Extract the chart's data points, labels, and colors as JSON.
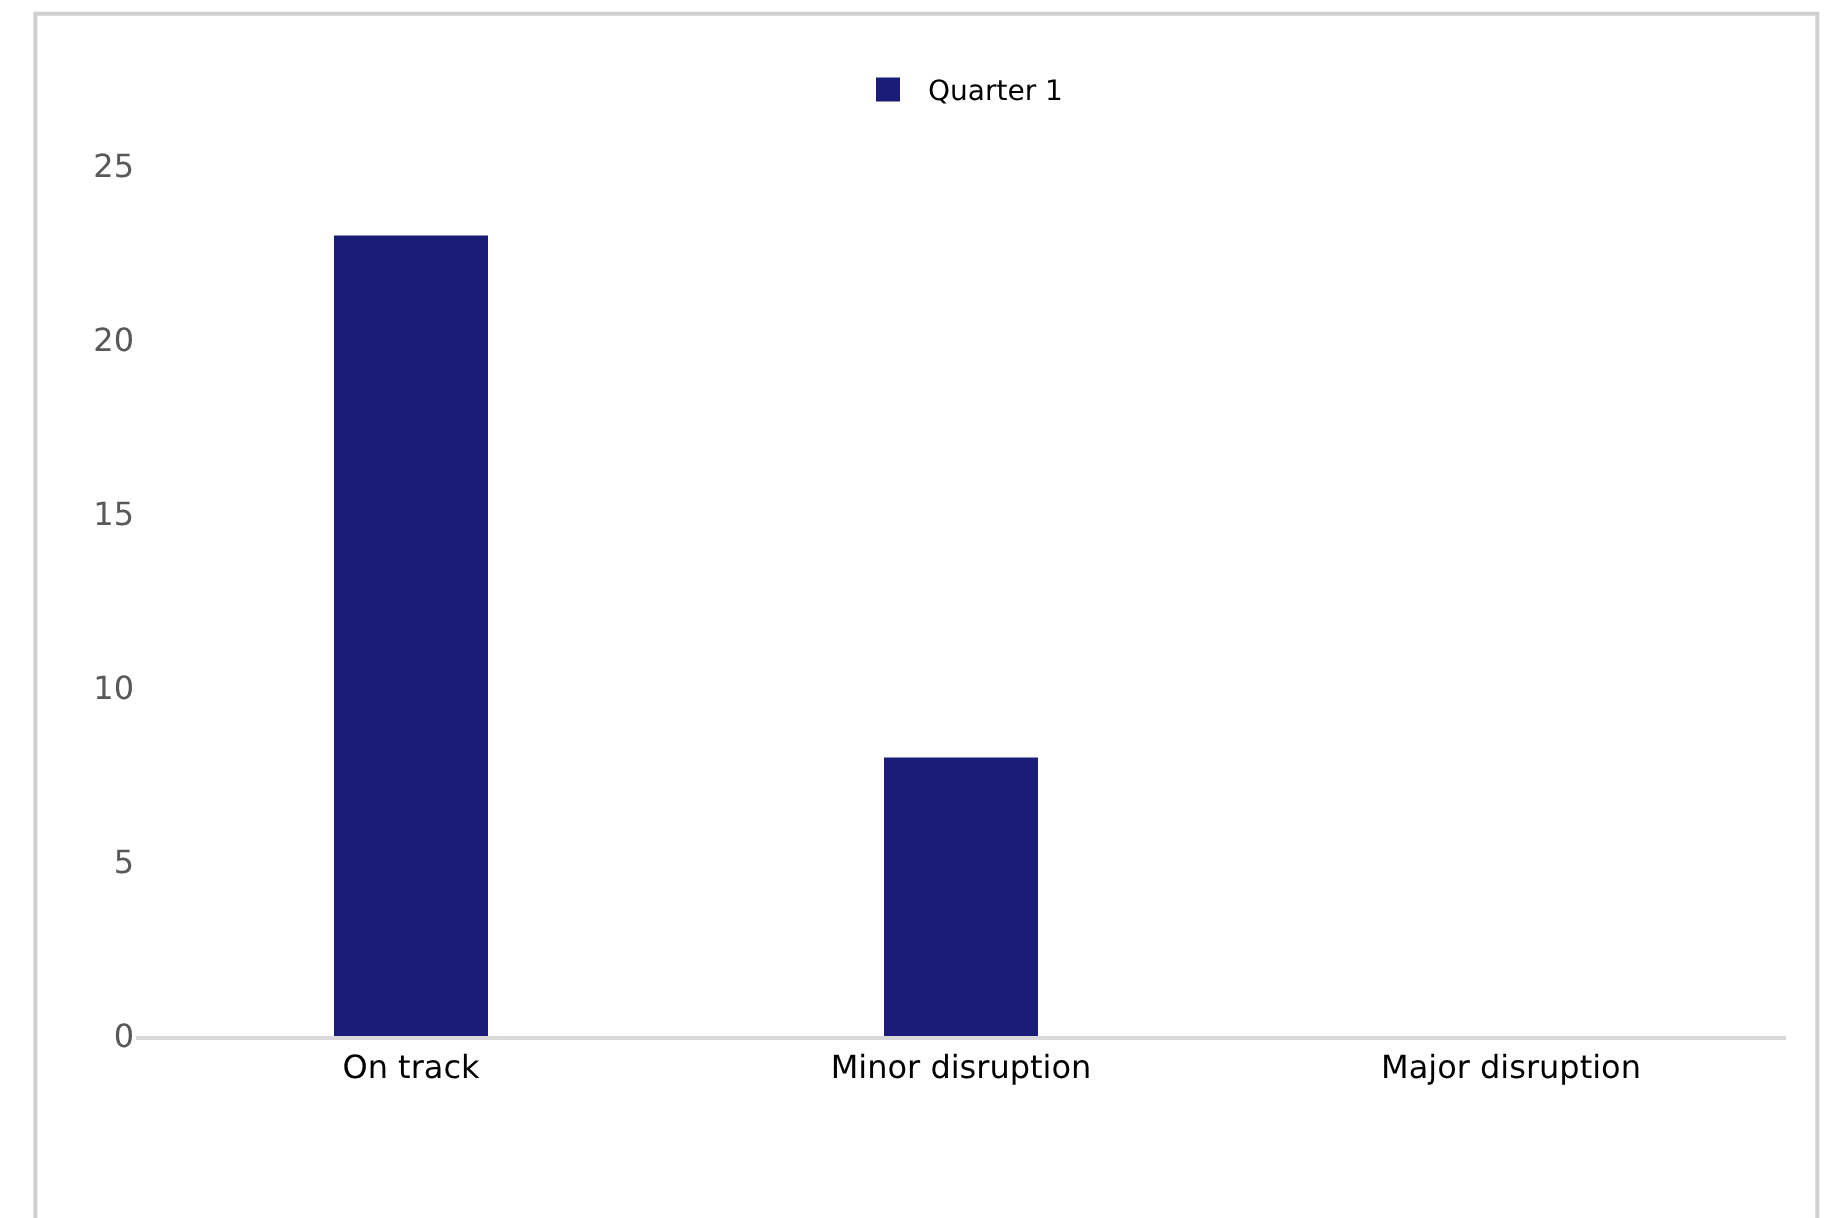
{
  "chart_data": {
    "type": "bar",
    "categories": [
      "On track",
      "Minor disruption",
      "Major disruption"
    ],
    "series": [
      {
        "name": "Quarter 1",
        "color": "#1b1c77",
        "values": [
          23,
          8,
          0
        ]
      }
    ],
    "ylim": [
      0,
      25
    ],
    "yticks": [
      0,
      5,
      10,
      15,
      20,
      25
    ],
    "legend": "top"
  }
}
